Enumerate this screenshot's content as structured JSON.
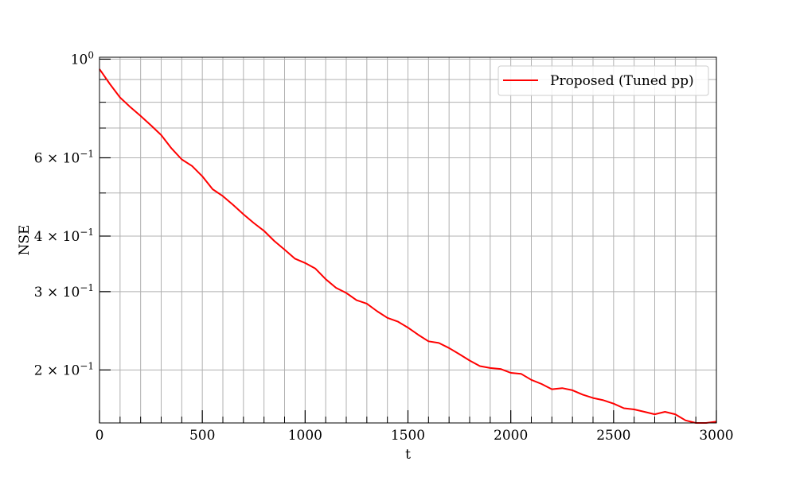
{
  "chart_data": {
    "type": "line",
    "title": "",
    "xlabel": "t",
    "ylabel": "NSE",
    "xlim": [
      0,
      3000
    ],
    "ylim": [
      0.152,
      1.01
    ],
    "yscale": "log",
    "grid": true,
    "legend_position": "top-right",
    "x_ticks": [
      0,
      500,
      1000,
      1500,
      2000,
      2500,
      3000
    ],
    "x_tick_labels": [
      "0",
      "500",
      "1000",
      "1500",
      "2000",
      "2500",
      "3000"
    ],
    "x_minor_ticks": [
      100,
      200,
      300,
      400,
      600,
      700,
      800,
      900,
      1100,
      1200,
      1300,
      1400,
      1600,
      1700,
      1800,
      1900,
      2100,
      2200,
      2300,
      2400,
      2600,
      2700,
      2800,
      2900
    ],
    "y_major_ticks": [
      {
        "value": 1.0,
        "base": "10",
        "exp": "0"
      },
      {
        "value": 0.6,
        "coef": "6 × ",
        "base": "10",
        "exp": "−1"
      },
      {
        "value": 0.4,
        "coef": "4 × ",
        "base": "10",
        "exp": "−1"
      },
      {
        "value": 0.3,
        "coef": "3 × ",
        "base": "10",
        "exp": "−1"
      },
      {
        "value": 0.2,
        "coef": "2 × ",
        "base": "10",
        "exp": "−1"
      }
    ],
    "y_minor_ticks": [
      0.9,
      0.8,
      0.7,
      0.5
    ],
    "series": [
      {
        "name": "Proposed (Tuned pp)",
        "color": "#ff0000",
        "x": [
          0,
          50,
          100,
          150,
          200,
          250,
          300,
          350,
          400,
          450,
          500,
          550,
          600,
          650,
          700,
          750,
          800,
          850,
          900,
          950,
          1000,
          1050,
          1100,
          1150,
          1200,
          1250,
          1300,
          1350,
          1400,
          1450,
          1500,
          1550,
          1600,
          1650,
          1700,
          1750,
          1800,
          1850,
          1900,
          1950,
          2000,
          2050,
          2100,
          2150,
          2200,
          2250,
          2300,
          2350,
          2400,
          2450,
          2500,
          2550,
          2600,
          2650,
          2700,
          2750,
          2800,
          2850,
          2900,
          2950,
          3000
        ],
        "y": [
          0.95,
          0.88,
          0.82,
          0.78,
          0.745,
          0.71,
          0.675,
          0.63,
          0.595,
          0.575,
          0.545,
          0.51,
          0.492,
          0.47,
          0.448,
          0.428,
          0.411,
          0.39,
          0.373,
          0.356,
          0.348,
          0.338,
          0.32,
          0.306,
          0.298,
          0.287,
          0.282,
          0.271,
          0.262,
          0.257,
          0.249,
          0.24,
          0.232,
          0.23,
          0.224,
          0.217,
          0.21,
          0.204,
          0.202,
          0.201,
          0.197,
          0.196,
          0.19,
          0.186,
          0.181,
          0.182,
          0.18,
          0.176,
          0.173,
          0.171,
          0.168,
          0.164,
          0.163,
          0.161,
          0.159,
          0.161,
          0.159,
          0.154,
          0.152,
          0.152,
          0.153
        ]
      }
    ]
  }
}
